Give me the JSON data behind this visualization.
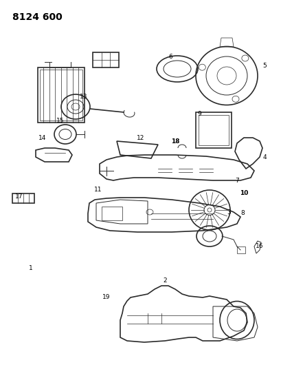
{
  "title": "8124 600",
  "background_color": "#ffffff",
  "line_color": "#2a2a2a",
  "label_color": "#000000",
  "figsize": [
    4.1,
    5.33
  ],
  "dpi": 100
}
